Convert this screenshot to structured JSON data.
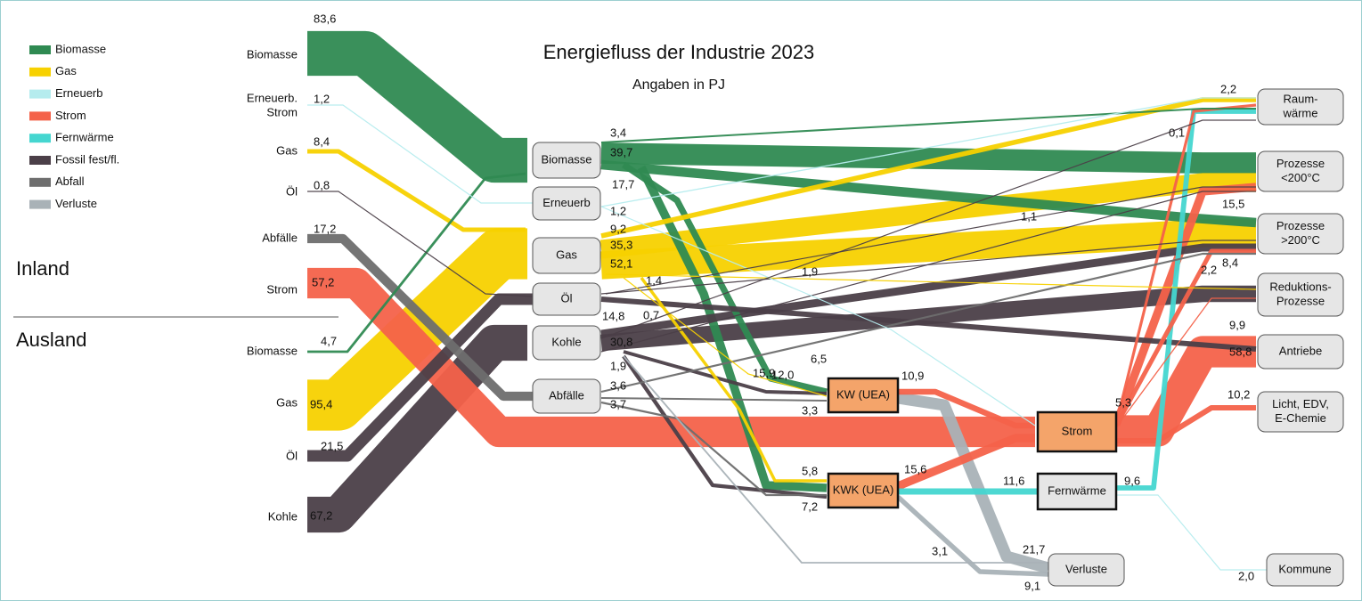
{
  "title": "Energiefluss der Industrie 2023",
  "subtitle": "Angaben in PJ",
  "legend": [
    {
      "label": "Biomasse",
      "color": "#2f8a52"
    },
    {
      "label": "Gas",
      "color": "#f7d100"
    },
    {
      "label": "Erneuerb",
      "color": "#b5ecee"
    },
    {
      "label": "Strom",
      "color": "#f4624a"
    },
    {
      "label": "Fernwärme",
      "color": "#45d6d0"
    },
    {
      "label": "Fossil fest/fl.",
      "color": "#4b3f48"
    },
    {
      "label": "Abfall",
      "color": "#6e6e6e"
    },
    {
      "label": "Verluste",
      "color": "#a9b2b7"
    }
  ],
  "regions": [
    "Inland",
    "Ausland"
  ],
  "sources": [
    [
      "Biomasse"
    ],
    [
      "Erneuerb.",
      "Strom"
    ],
    [
      "Gas"
    ],
    [
      "Öl"
    ],
    [
      "Abfälle"
    ],
    [
      "Strom"
    ],
    [
      "Biomasse"
    ],
    [
      "Gas"
    ],
    [
      "Öl"
    ],
    [
      "Kohle"
    ]
  ],
  "hubs": [
    [
      "Biomasse"
    ],
    [
      "Erneuerb"
    ],
    [
      "Gas"
    ],
    [
      "Öl"
    ],
    [
      "Kohle"
    ],
    [
      "Abfälle"
    ]
  ],
  "units": [
    [
      "KW (UEA)"
    ],
    [
      "KWK (UEA)"
    ],
    [
      "Strom"
    ],
    [
      "Fernwärme"
    ],
    [
      "Verluste"
    ]
  ],
  "sinks": [
    [
      "Raum-",
      "wärme"
    ],
    [
      "Prozesse",
      "<200°C"
    ],
    [
      "Prozesse",
      ">200°C"
    ],
    [
      "Reduktions-",
      "Prozesse"
    ],
    [
      "Antriebe"
    ],
    [
      "Licht, EDV,",
      "E-Chemie"
    ],
    [
      "Kommune"
    ]
  ],
  "flows": [
    {
      "value": 83.6,
      "label": "83,6",
      "color": "#2f8a52"
    },
    {
      "value": 1.2,
      "label": "1,2",
      "color": "#b5ecee"
    },
    {
      "value": 8.4,
      "label": "8,4",
      "color": "#f7d100"
    },
    {
      "value": 0.8,
      "label": "0,8",
      "color": "#4b3f48"
    },
    {
      "value": 17.2,
      "label": "17,2",
      "color": "#6e6e6e"
    },
    {
      "value": 57.2,
      "label": "57,2",
      "color": "#f4624a"
    },
    {
      "value": 4.7,
      "label": "4,7",
      "color": "#2f8a52"
    },
    {
      "value": 95.4,
      "label": "95,4",
      "color": "#f7d100"
    },
    {
      "value": 21.5,
      "label": "21,5",
      "color": "#4b3f48"
    },
    {
      "value": 67.2,
      "label": "67,2",
      "color": "#4b3f48"
    },
    {
      "value": 3.4,
      "label": "3,4",
      "color": "#2f8a52"
    },
    {
      "value": 39.7,
      "label": "39,7",
      "color": "#2f8a52"
    },
    {
      "value": 17.7,
      "label": "17,7",
      "color": "#2f8a52"
    },
    {
      "value": 12.0,
      "label": "12,0",
      "color": "#2f8a52"
    },
    {
      "value": 15.9,
      "label": "15,9",
      "color": "#2f8a52"
    },
    {
      "value": 1.2,
      "label": "1,2",
      "color": "#b5ecee"
    },
    {
      "value": 9.2,
      "label": "9,2",
      "color": "#f7d100"
    },
    {
      "value": 35.3,
      "label": "35,3",
      "color": "#f7d100"
    },
    {
      "value": 52.1,
      "label": "52,1",
      "color": "#f7d100"
    },
    {
      "value": 1.4,
      "label": "1,4",
      "color": "#f7d100"
    },
    {
      "value": 0.7,
      "label": "0,7",
      "color": "#f7d100"
    },
    {
      "value": 5.8,
      "label": "5,8",
      "color": "#f7d100"
    },
    {
      "value": 1.9,
      "label": "1,9",
      "color": "#4b3f48"
    },
    {
      "value": 9.9,
      "label": "9,9",
      "color": "#4b3f48"
    },
    {
      "value": 1.1,
      "label": "1,1",
      "color": "#4b3f48"
    },
    {
      "value": 14.8,
      "label": "14,8",
      "color": "#4b3f48"
    },
    {
      "value": 30.8,
      "label": "30,8",
      "color": "#4b3f48"
    },
    {
      "value": 6.5,
      "label": "6,5",
      "color": "#4b3f48"
    },
    {
      "value": 7.2,
      "label": "7,2",
      "color": "#4b3f48"
    },
    {
      "value": 0.1,
      "label": "0,1",
      "color": "#4b3f48"
    },
    {
      "value": 1.9,
      "label": "1,9",
      "color": "#4b3f48"
    },
    {
      "value": 3.1,
      "label": "3,1",
      "color": "#a9b2b7"
    },
    {
      "value": 3.6,
      "label": "3,6",
      "color": "#6e6e6e"
    },
    {
      "value": 3.3,
      "label": "3,3",
      "color": "#6e6e6e"
    },
    {
      "value": 3.7,
      "label": "3,7",
      "color": "#6e6e6e"
    },
    {
      "value": 10.9,
      "label": "10,9",
      "color": "#f4624a"
    },
    {
      "value": 21.7,
      "label": "21,7",
      "color": "#a9b2b7"
    },
    {
      "value": 15.6,
      "label": "15,6",
      "color": "#f4624a"
    },
    {
      "value": 11.6,
      "label": "11,6",
      "color": "#45d6d0"
    },
    {
      "value": 9.1,
      "label": "9,1",
      "color": "#a9b2b7"
    },
    {
      "value": 58.8,
      "label": "58,8",
      "color": "#f4624a"
    },
    {
      "value": 10.2,
      "label": "10,2",
      "color": "#f4624a"
    },
    {
      "value": 5.3,
      "label": "5,3",
      "color": "#f4624a"
    },
    {
      "value": 8.4,
      "label": "8,4",
      "color": "#f4624a"
    },
    {
      "value": 2.2,
      "label": "2,2",
      "color": "#f4624a"
    },
    {
      "value": 15.5,
      "label": "15,5",
      "color": "#f4624a"
    },
    {
      "value": 9.6,
      "label": "9,6",
      "color": "#45d6d0"
    },
    {
      "value": 2.0,
      "label": "2,0",
      "color": "#b5ecee"
    },
    {
      "value": 2.2,
      "label": "2,2",
      "color": "#b5ecee"
    }
  ]
}
